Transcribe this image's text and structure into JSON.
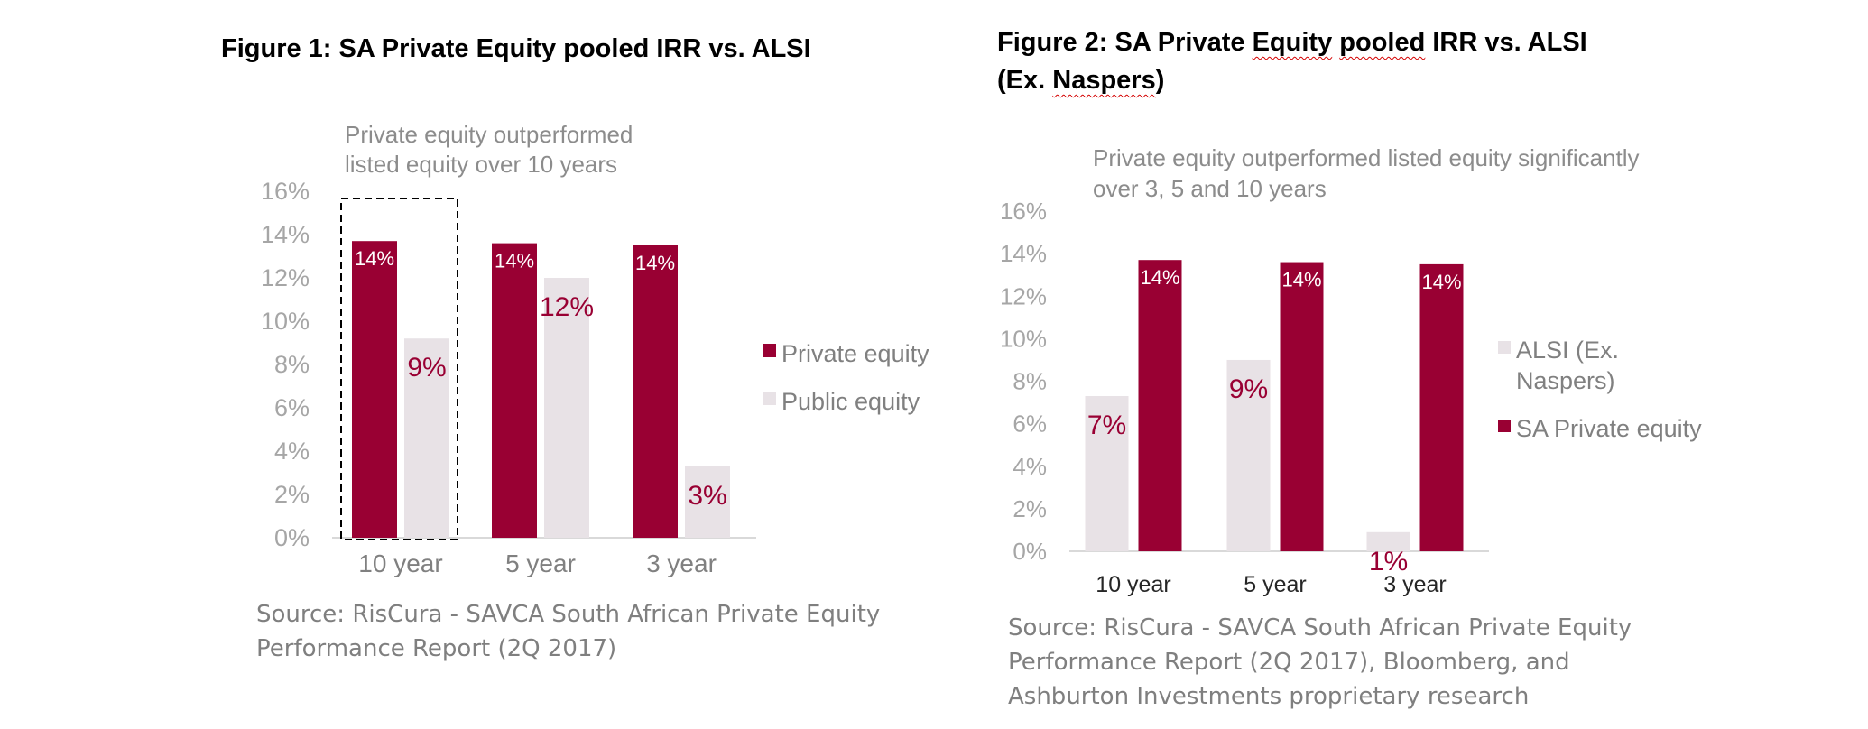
{
  "figures": [
    {
      "title": "Figure 1: SA Private Equity pooled IRR vs. ALSI",
      "source": "Source: RisCura - SAVCA South African Private Equity Performance Report (2Q 2017)"
    },
    {
      "title_parts": [
        "Figure 2: SA Private ",
        "Equity",
        " ",
        "pooled",
        " IRR vs. ALSI"
      ],
      "title_line2_parts": [
        "(Ex. ",
        "Naspers",
        ")"
      ],
      "source": "Source: RisCura - SAVCA South African Private Equity Performance Report (2Q 2017), Bloomberg, and Ashburton Investments proprietary research"
    }
  ],
  "chart_data": [
    {
      "type": "bar",
      "subtitle": [
        "Private equity outperformed",
        "listed equity over 10 years"
      ],
      "categories": [
        "10 year",
        "5 year",
        "3 year"
      ],
      "series": [
        {
          "name": "Private equity",
          "values": [
            13.7,
            13.6,
            13.5
          ],
          "labels": [
            "14%",
            "14%",
            "14%"
          ],
          "color": "#990033"
        },
        {
          "name": "Public equity",
          "values": [
            9.2,
            12.0,
            3.3
          ],
          "labels": [
            "9%",
            "12%",
            "3%"
          ],
          "color": "#e8e2e6"
        }
      ],
      "ylim": [
        0,
        16
      ],
      "yticks": [
        "0%",
        "2%",
        "4%",
        "6%",
        "8%",
        "10%",
        "12%",
        "14%",
        "16%"
      ],
      "legend_position": "right",
      "highlight_category": "10 year",
      "grid": false
    },
    {
      "type": "bar",
      "subtitle": [
        "Private equity outperformed listed equity significantly",
        "over 3, 5 and 10 years"
      ],
      "categories": [
        "10 year",
        "5 year",
        "3 year"
      ],
      "series": [
        {
          "name": "ALSI (Ex. Naspers)",
          "legend_lines": [
            "ALSI (Ex.",
            "Naspers)"
          ],
          "values": [
            7.3,
            9.0,
            0.9
          ],
          "labels": [
            "7%",
            "9%",
            "1%"
          ],
          "color": "#e8e2e6"
        },
        {
          "name": "SA Private equity",
          "legend_lines": [
            "SA Private equity"
          ],
          "values": [
            13.7,
            13.6,
            13.5
          ],
          "labels": [
            "14%",
            "14%",
            "14%"
          ],
          "color": "#990033"
        }
      ],
      "ylim": [
        0,
        16
      ],
      "yticks": [
        "0%",
        "2%",
        "4%",
        "6%",
        "8%",
        "10%",
        "12%",
        "14%",
        "16%"
      ],
      "legend_position": "right",
      "grid": false
    }
  ]
}
